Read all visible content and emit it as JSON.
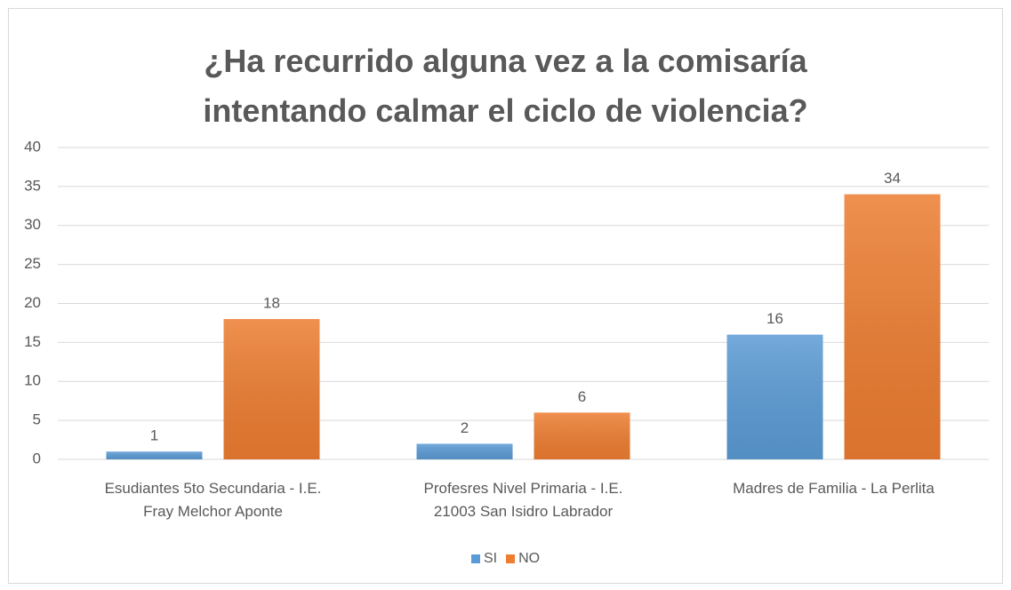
{
  "chart_data": {
    "type": "bar",
    "title": [
      "¿Ha recurrido alguna vez a la comisaría",
      "intentando calmar el ciclo de violencia?"
    ],
    "categories": [
      "Esudiantes 5to Secundaria - I.E.\nFray Melchor Aponte",
      "Profesres Nivel Primaria - I.E.\n21003 San Isidro Labrador",
      "Madres de Familia - La Perlita"
    ],
    "series": [
      {
        "name": "SI",
        "color": "#5b9bd5",
        "values": [
          1,
          2,
          16
        ]
      },
      {
        "name": "NO",
        "color": "#ed7d31",
        "values": [
          18,
          6,
          34
        ]
      }
    ],
    "ylim": [
      0,
      40
    ],
    "yticks": [
      0,
      5,
      10,
      15,
      20,
      25,
      30,
      35,
      40
    ],
    "grid": true,
    "legend": "bottom"
  }
}
